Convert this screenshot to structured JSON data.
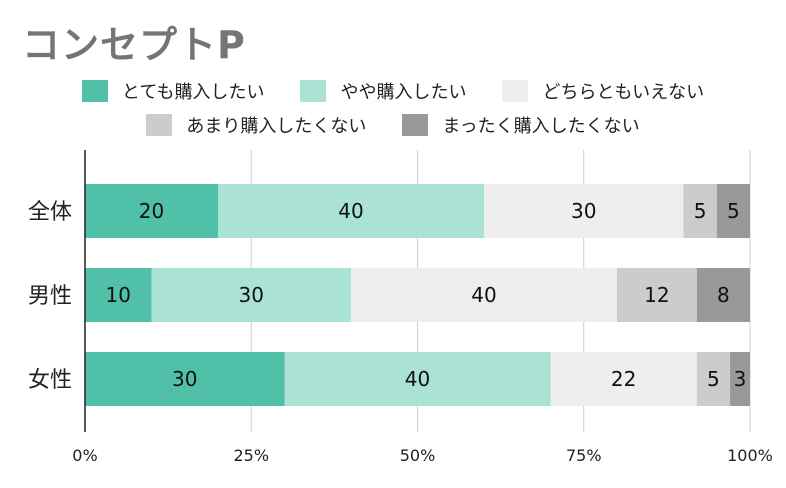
{
  "title": "コンセプトP",
  "colors": [
    "#50c0a8",
    "#aae2d5",
    "#eeeeee",
    "#cccccc",
    "#999999"
  ],
  "chart_data": {
    "type": "bar",
    "orientation": "horizontal",
    "stacked": "percent",
    "categories": [
      "全体",
      "男性",
      "女性"
    ],
    "series": [
      {
        "name": "とても購入したい",
        "values": [
          20,
          10,
          30
        ]
      },
      {
        "name": "やや購入したい",
        "values": [
          40,
          30,
          40
        ]
      },
      {
        "name": "どちらともいえない",
        "values": [
          30,
          40,
          22
        ]
      },
      {
        "name": "あまり購入したくない",
        "values": [
          5,
          12,
          5
        ]
      },
      {
        "name": "まったく購入したくない",
        "values": [
          5,
          8,
          3
        ]
      }
    ],
    "xticks": [
      "0%",
      "25%",
      "50%",
      "75%",
      "100%"
    ],
    "xlim": [
      0,
      100
    ],
    "grid": true,
    "legend": "top"
  }
}
